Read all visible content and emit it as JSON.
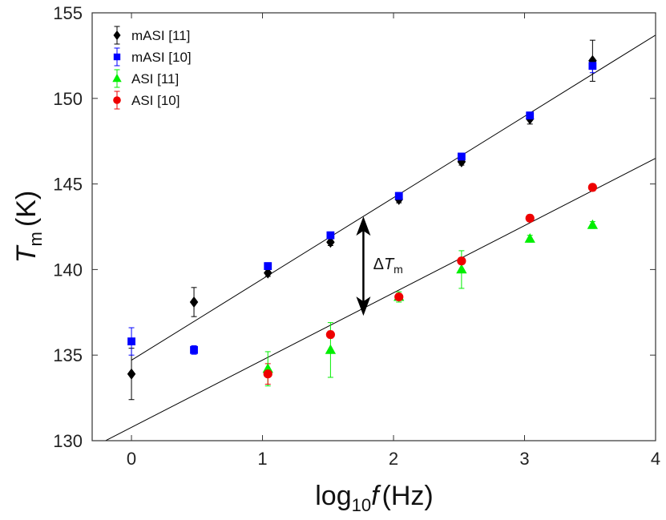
{
  "chart_data": {
    "type": "scatter",
    "xlabel": {
      "main": "log",
      "sub": "10",
      "var": "f",
      "unit": "(Hz)"
    },
    "ylabel": {
      "main": "T",
      "sub": "m",
      "unit": "(K)"
    },
    "xlim": [
      -0.3,
      4
    ],
    "ylim": [
      130,
      155
    ],
    "xticks": [
      0,
      1,
      2,
      3,
      4
    ],
    "yticks": [
      130,
      135,
      140,
      145,
      150,
      155
    ],
    "grid": false,
    "legend_position": "top-left",
    "series": [
      {
        "name": "mASI [11]",
        "marker": "diamond",
        "color": "#000000",
        "points": [
          {
            "x": 0.0,
            "y": 133.9,
            "err": 1.5
          },
          {
            "x": 0.477,
            "y": 138.1,
            "err": 0.85
          },
          {
            "x": 1.041,
            "y": 139.8,
            "err": 0.2
          },
          {
            "x": 1.519,
            "y": 141.6,
            "err": 0.2
          },
          {
            "x": 2.041,
            "y": 144.1,
            "err": 0.2
          },
          {
            "x": 2.519,
            "y": 146.3,
            "err": 0.2
          },
          {
            "x": 3.041,
            "y": 148.8,
            "err": 0.3
          },
          {
            "x": 3.519,
            "y": 152.2,
            "err": 1.2
          }
        ]
      },
      {
        "name": "mASI [10]",
        "marker": "square",
        "color": "#0000ff",
        "points": [
          {
            "x": 0.0,
            "y": 135.8,
            "err": 0.8
          },
          {
            "x": 0.477,
            "y": 135.3,
            "err": 0.25
          },
          {
            "x": 1.041,
            "y": 140.2,
            "err": 0.2
          },
          {
            "x": 1.519,
            "y": 142.0,
            "err": 0.2
          },
          {
            "x": 2.041,
            "y": 144.3,
            "err": 0.2
          },
          {
            "x": 2.519,
            "y": 146.6,
            "err": 0.2
          },
          {
            "x": 3.041,
            "y": 149.0,
            "err": 0.2
          },
          {
            "x": 3.519,
            "y": 151.9,
            "err": 0.4
          }
        ]
      },
      {
        "name": "ASI [11]",
        "marker": "triangle",
        "color": "#00ee00",
        "points": [
          {
            "x": 1.041,
            "y": 134.2,
            "err": 1.0
          },
          {
            "x": 1.519,
            "y": 135.3,
            "err": 1.6
          },
          {
            "x": 2.041,
            "y": 138.4,
            "err": 0.3
          },
          {
            "x": 2.519,
            "y": 140.0,
            "err": 1.1
          },
          {
            "x": 3.041,
            "y": 141.8,
            "err": 0.2
          },
          {
            "x": 3.519,
            "y": 142.6,
            "err": 0.2
          }
        ]
      },
      {
        "name": "ASI [10]",
        "marker": "circle",
        "color": "#ee0000",
        "points": [
          {
            "x": 1.041,
            "y": 133.9,
            "err": 0.6
          },
          {
            "x": 1.519,
            "y": 136.2,
            "err": 0.2
          },
          {
            "x": 2.041,
            "y": 138.4,
            "err": 0.2
          },
          {
            "x": 2.519,
            "y": 140.5,
            "err": 0.2
          },
          {
            "x": 3.041,
            "y": 143.0,
            "err": 0.2
          },
          {
            "x": 3.519,
            "y": 144.8,
            "err": 0.2
          }
        ]
      }
    ],
    "fit_lines": [
      {
        "label": "mASI fit",
        "from": [
          0,
          134.7
        ],
        "to": [
          4,
          153.7
        ],
        "color": "#000000"
      },
      {
        "label": "ASI fit",
        "from": [
          -0.3,
          129.6
        ],
        "to": [
          4,
          146.5
        ],
        "color": "#000000"
      }
    ],
    "annotations": [
      {
        "text": {
          "delta": "Δ",
          "var": "T",
          "sub": "m"
        },
        "arrow_x": 1.77,
        "arrow_y_range": [
          137.3,
          143.1
        ],
        "text_at": [
          1.82,
          140.2
        ]
      }
    ]
  }
}
